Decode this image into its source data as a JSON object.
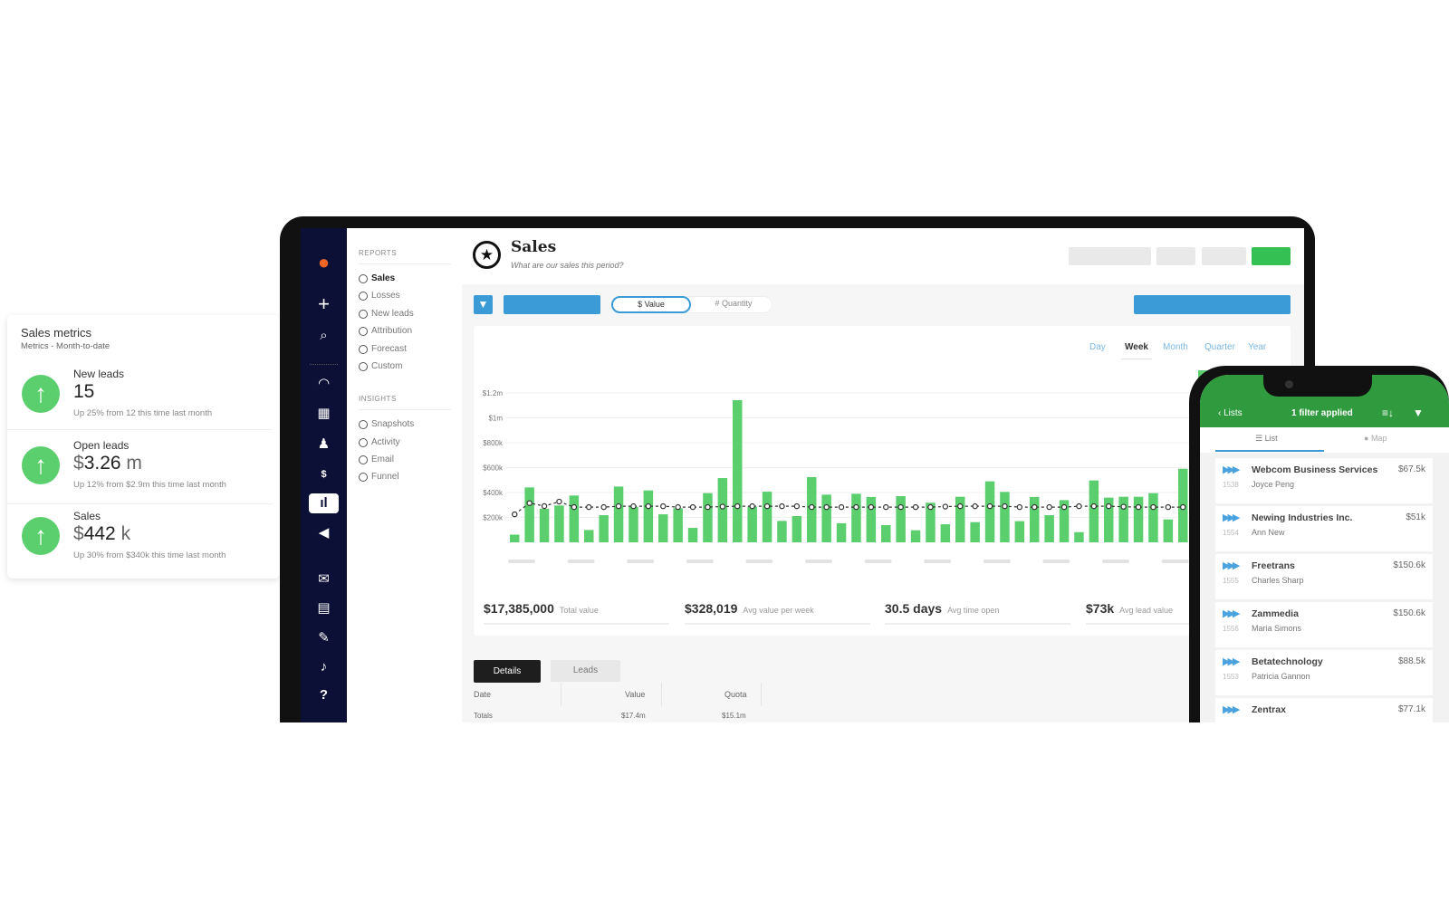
{
  "metrics_card": {
    "title": "Sales metrics",
    "subtitle": "Metrics - Month-to-date",
    "items": [
      {
        "label": "New leads",
        "prefix": "",
        "value": "15",
        "unit": "",
        "change": "Up 25% from 12 this time last month",
        "trend": "up"
      },
      {
        "label": "Open leads",
        "prefix": "$",
        "value": "3.26",
        "unit": "m",
        "change": "Up 12% from $2.9m this time last month",
        "trend": "up"
      },
      {
        "label": "Sales",
        "prefix": "$",
        "value": "442",
        "unit": "k",
        "change": "Up 30% from $340k this time last month",
        "trend": "up"
      }
    ],
    "accent_color": "#5bcf6e"
  },
  "rail": {
    "icons": [
      "acorn-logo",
      "plus",
      "search",
      "gauge",
      "building",
      "person",
      "ticket",
      "bar-chart",
      "megaphone",
      "envelope",
      "calendar",
      "calendar-edit",
      "bell",
      "question"
    ],
    "active": "bar-chart",
    "background": "#0d1036",
    "logo_color": "#f26522"
  },
  "subnav": {
    "reports_title": "REPORTS",
    "reports": [
      "Sales",
      "Losses",
      "New leads",
      "Attribution",
      "Forecast",
      "Custom"
    ],
    "active": "Sales",
    "insights_title": "INSIGHTS",
    "insights": [
      "Snapshots",
      "Activity",
      "Email",
      "Funnel"
    ]
  },
  "header": {
    "title": "Sales",
    "subtitle": "What are our sales this period?"
  },
  "toolbar": {
    "value_label": "$  Value",
    "quantity_label": "#  Quantity",
    "selected": "Value",
    "accent": "#3b9bd6",
    "primary_green": "#34c053"
  },
  "time_tabs": {
    "items": [
      "Day",
      "Week",
      "Month",
      "Quarter",
      "Year"
    ],
    "active": "Week"
  },
  "chart_data": {
    "type": "bar",
    "y_ticks": [
      "$1.2m",
      "$1m",
      "$800k",
      "$600k",
      "$400k",
      "$200k"
    ],
    "ylim": [
      0,
      1200000
    ],
    "grid": true,
    "legend_position": "top-right",
    "series": [
      {
        "type": "bar",
        "color": "#5bcf6e",
        "values": [
          62000,
          441000,
          269000,
          296000,
          376000,
          99000,
          218000,
          448000,
          286000,
          417000,
          225000,
          274000,
          116000,
          395000,
          516000,
          1142000,
          286000,
          407000,
          172000,
          211000,
          524000,
          383000,
          153000,
          390000,
          364000,
          138000,
          371000,
          97000,
          318000,
          145000,
          366000,
          162000,
          490000,
          405000,
          170000,
          364000,
          218000,
          339000,
          82000,
          497000,
          359000,
          366000,
          366000,
          395000,
          184000,
          591000
        ]
      },
      {
        "type": "line",
        "color": "#333333",
        "style": "dashed",
        "values": [
          225000,
          315000,
          291000,
          327000,
          283000,
          283000,
          283000,
          290000,
          290000,
          290000,
          290000,
          283000,
          283000,
          283000,
          287000,
          290000,
          290000,
          290000,
          290000,
          290000,
          283000,
          283000,
          283000,
          283000,
          283000,
          283000,
          283000,
          283000,
          283000,
          287000,
          290000,
          290000,
          290000,
          290000,
          283000,
          283000,
          283000,
          283000,
          290000,
          290000,
          290000,
          286000,
          283000,
          283000,
          283000,
          283000
        ]
      }
    ]
  },
  "stats": [
    {
      "value": "$17,385,000",
      "label": "Total value"
    },
    {
      "value": "$328,019",
      "label": "Avg value per week"
    },
    {
      "value": "30.5 days",
      "label": "Avg time open"
    },
    {
      "value": "$73k",
      "label": "Avg lead value"
    }
  ],
  "bottom_tabs": {
    "items": [
      "Details",
      "Leads"
    ],
    "active": "Details"
  },
  "table": {
    "headers": [
      "Date",
      "Value",
      "Quota"
    ],
    "totals": [
      "Totals",
      "$17.4m",
      "$15.1m"
    ]
  },
  "phone": {
    "back_label": "Lists",
    "title": "1 filter applied",
    "tabs": [
      "List",
      "Map"
    ],
    "active_tab": "List",
    "header_color": "#2f9a3e",
    "items": [
      {
        "name": "Webcom Business Services",
        "number": "1538",
        "contact": "Joyce Peng",
        "amount": "$67.5k"
      },
      {
        "name": "Newing Industries Inc.",
        "number": "1554",
        "contact": "Ann New",
        "amount": "$51k"
      },
      {
        "name": "Freetrans",
        "number": "1555",
        "contact": "Charles Sharp",
        "amount": "$150.6k"
      },
      {
        "name": "Zammedia",
        "number": "1556",
        "contact": "Maria Simons",
        "amount": "$150.6k"
      },
      {
        "name": "Betatechnology",
        "number": "1553",
        "contact": "Patricia Gannon",
        "amount": "$88.5k"
      },
      {
        "name": "Zentrax",
        "number": "",
        "contact": "",
        "amount": "$77.1k"
      }
    ]
  }
}
